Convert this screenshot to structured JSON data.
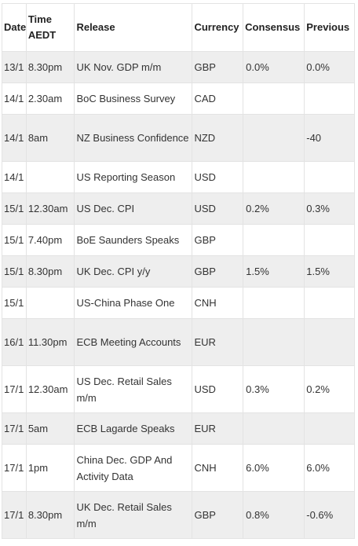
{
  "table": {
    "headers": {
      "date": "Date",
      "time": "Time AEDT",
      "release": "Release",
      "currency": "Currency",
      "consensus": "Consensus",
      "previous": "Previous"
    },
    "rows": [
      {
        "date": "13/1",
        "time": "8.30pm",
        "release": "UK Nov. GDP m/m",
        "currency": "GBP",
        "consensus": "0.0%",
        "previous": "0.0%"
      },
      {
        "date": "14/1",
        "time": "2.30am",
        "release": "BoC Business Survey",
        "currency": "CAD",
        "consensus": "",
        "previous": ""
      },
      {
        "date": "14/1",
        "time": "8am",
        "release": "NZ Business Confidence",
        "currency": "NZD",
        "consensus": "",
        "previous": "-40"
      },
      {
        "date": "14/1",
        "time": "",
        "release": "US Reporting Season",
        "currency": "USD",
        "consensus": "",
        "previous": ""
      },
      {
        "date": "15/1",
        "time": "12.30am",
        "release": "US Dec. CPI",
        "currency": "USD",
        "consensus": "0.2%",
        "previous": "0.3%"
      },
      {
        "date": "15/1",
        "time": "7.40pm",
        "release": "BoE Saunders Speaks",
        "currency": "GBP",
        "consensus": "",
        "previous": ""
      },
      {
        "date": "15/1",
        "time": "8.30pm",
        "release": "UK Dec. CPI y/y",
        "currency": "GBP",
        "consensus": "1.5%",
        "previous": "1.5%"
      },
      {
        "date": "15/1",
        "time": "",
        "release": "US-China Phase One",
        "currency": "CNH",
        "consensus": "",
        "previous": ""
      },
      {
        "date": "16/1",
        "time": "11.30pm",
        "release": "ECB Meeting Accounts",
        "currency": "EUR",
        "consensus": "",
        "previous": ""
      },
      {
        "date": "17/1",
        "time": "12.30am",
        "release": "US Dec. Retail Sales m/m",
        "currency": "USD",
        "consensus": "0.3%",
        "previous": "0.2%"
      },
      {
        "date": "17/1",
        "time": "5am",
        "release": "ECB Lagarde Speaks",
        "currency": "EUR",
        "consensus": "",
        "previous": ""
      },
      {
        "date": "17/1",
        "time": "1pm",
        "release": "China Dec. GDP And Activity Data",
        "currency": "CNH",
        "consensus": "6.0%",
        "previous": "6.0%"
      },
      {
        "date": "17/1",
        "time": "8.30pm",
        "release": "UK Dec. Retail Sales m/m",
        "currency": "GBP",
        "consensus": "0.8%",
        "previous": "-0.6%"
      }
    ]
  }
}
